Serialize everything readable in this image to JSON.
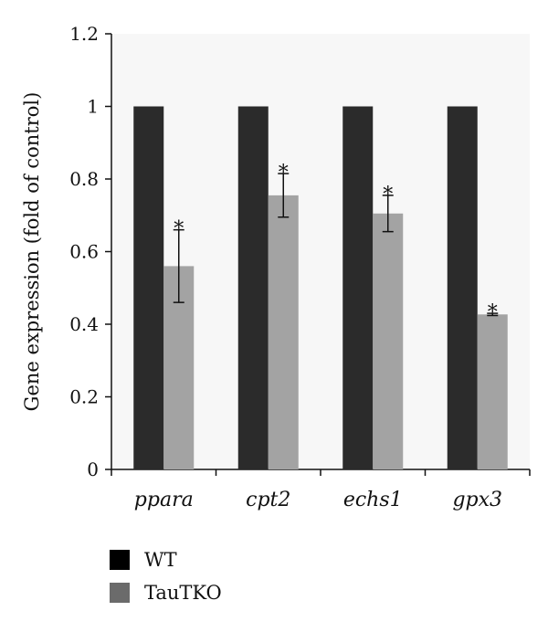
{
  "chart_data": {
    "type": "bar",
    "categories": [
      "ppara",
      "cpt2",
      "echs1",
      "gpx3"
    ],
    "series": [
      {
        "name": "WT",
        "color": "#2b2b2b",
        "values": [
          1,
          1,
          1,
          1
        ],
        "errors": [
          0,
          0,
          0,
          0
        ],
        "sig": [
          "",
          "",
          "",
          ""
        ]
      },
      {
        "name": "TauTKO",
        "color": "#a3a3a3",
        "values": [
          0.56,
          0.755,
          0.705,
          0.427
        ],
        "errors": [
          0.1,
          0.06,
          0.05,
          0.003
        ],
        "sig": [
          "*",
          "*",
          "*",
          "*"
        ]
      }
    ],
    "ylabel": "Gene expression (fold of control)",
    "xlabel": "",
    "ylim": [
      0,
      1.2
    ],
    "yticks": [
      0,
      0.2,
      0.4,
      0.6,
      0.8,
      1,
      1.2
    ],
    "ytick_labels": [
      "0",
      "0.2",
      "0.4",
      "0.6",
      "0.8",
      "1",
      "1.2"
    ],
    "grid": false,
    "legend_position": "bottom-left"
  },
  "legend": {
    "items": [
      {
        "label": "WT",
        "color": "#000000"
      },
      {
        "label": "TauTKO",
        "color": "#6b6b6b"
      }
    ]
  }
}
